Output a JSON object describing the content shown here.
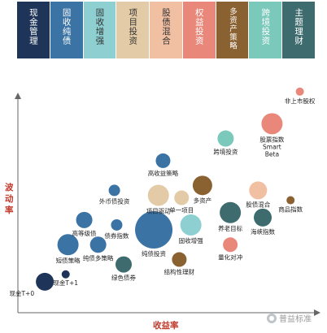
{
  "categories": [
    {
      "label": "现金管理",
      "color": "#1e3559",
      "text_color": "#ffffff"
    },
    {
      "label": "固收纯债",
      "color": "#3a73a4",
      "text_color": "#ffffff"
    },
    {
      "label": "固收增强",
      "color": "#8ed0d2",
      "text_color": "#333333"
    },
    {
      "label": "项目投资",
      "color": "#e2cba6",
      "text_color": "#333333"
    },
    {
      "label": "股债混合",
      "color": "#f1bfa2",
      "text_color": "#333333"
    },
    {
      "label": "权益投资",
      "color": "#e8877a",
      "text_color": "#ffffff"
    },
    {
      "label": "多资产策略",
      "color": "#8a6131",
      "text_color": "#ffffff"
    },
    {
      "label": "跨境投资",
      "color": "#7ac9bb",
      "text_color": "#ffffff"
    },
    {
      "label": "主题理财",
      "color": "#3d6b6e",
      "text_color": "#ffffff"
    }
  ],
  "chart_data": {
    "type": "scatter",
    "xlabel": "收益率",
    "ylabel": "波动率",
    "points": [
      {
        "label": "现金T+0",
        "x": 0.3,
        "y": 0.3,
        "size": 11,
        "color": "#1e3559"
      },
      {
        "label": "现金T+1",
        "x": 0.75,
        "y": 0.6,
        "size": 5,
        "color": "#1e3559"
      },
      {
        "label": "短债策略",
        "x": 0.8,
        "y": 1.8,
        "size": 13,
        "color": "#3a73a4"
      },
      {
        "label": "高等级债",
        "x": 1.15,
        "y": 2.8,
        "size": 10,
        "color": "#3a73a4"
      },
      {
        "label": "纯债多策略",
        "x": 1.45,
        "y": 1.8,
        "size": 10,
        "color": "#3a73a4"
      },
      {
        "label": "外币债投资",
        "x": 1.8,
        "y": 4.0,
        "size": 7,
        "color": "#3a73a4"
      },
      {
        "label": "债券指数",
        "x": 1.85,
        "y": 2.6,
        "size": 7,
        "color": "#3a73a4"
      },
      {
        "label": "绿色债券",
        "x": 2.0,
        "y": 1.0,
        "size": 10,
        "color": "#3d6b6e"
      },
      {
        "label": "纯债投资",
        "x": 2.65,
        "y": 2.4,
        "size": 23,
        "color": "#3a73a4"
      },
      {
        "label": "高收益策略",
        "x": 2.85,
        "y": 5.2,
        "size": 9,
        "color": "#3a73a4"
      },
      {
        "label": "项目驱动",
        "x": 2.75,
        "y": 3.8,
        "size": 13,
        "color": "#e2cba6"
      },
      {
        "label": "单一项目",
        "x": 3.25,
        "y": 3.7,
        "size": 9,
        "color": "#e2cba6"
      },
      {
        "label": "结构性理财",
        "x": 3.2,
        "y": 1.2,
        "size": 9,
        "color": "#8a6131"
      },
      {
        "label": "固收增强",
        "x": 3.45,
        "y": 2.6,
        "size": 13,
        "color": "#8ed0d2"
      },
      {
        "label": "多资产",
        "x": 3.7,
        "y": 4.2,
        "size": 12,
        "color": "#8a6131"
      },
      {
        "label": "跨境投资",
        "x": 4.2,
        "y": 6.1,
        "size": 10,
        "color": "#7ac9bb"
      },
      {
        "label": "养老目标",
        "x": 4.3,
        "y": 3.1,
        "size": 13,
        "color": "#3d6b6e"
      },
      {
        "label": "量化对冲",
        "x": 4.3,
        "y": 1.8,
        "size": 9,
        "color": "#e8877a"
      },
      {
        "label": "股债混合",
        "x": 4.9,
        "y": 4.0,
        "size": 11,
        "color": "#f1bfa2"
      },
      {
        "label": "海峡指数",
        "x": 5.0,
        "y": 2.9,
        "size": 11,
        "color": "#3d6b6e"
      },
      {
        "label": "股票指数 Smart Beta",
        "x": 5.2,
        "y": 6.7,
        "size": 13,
        "color": "#e8877a"
      },
      {
        "label": "商品指数",
        "x": 5.6,
        "y": 3.6,
        "size": 5,
        "color": "#8a6131"
      },
      {
        "label": "非上市股权",
        "x": 5.8,
        "y": 8.0,
        "size": 5,
        "color": "#e8877a"
      }
    ]
  }
}
